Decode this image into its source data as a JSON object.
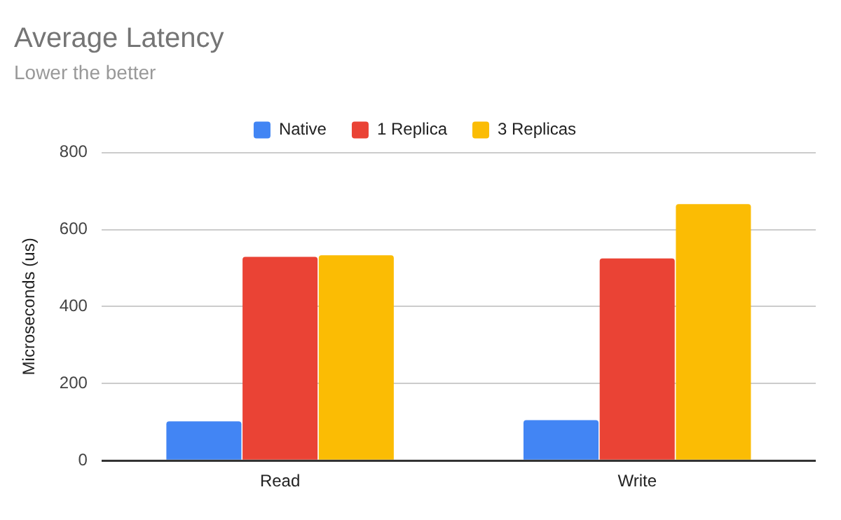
{
  "chart_data": {
    "type": "bar",
    "title": "Average Latency",
    "subtitle": "Lower the better",
    "ylabel": "Microseconds (us)",
    "categories": [
      "Read",
      "Write"
    ],
    "series": [
      {
        "name": "Native",
        "color": "#4285f4",
        "values": [
          102,
          105
        ]
      },
      {
        "name": "1 Replica",
        "color": "#ea4335",
        "values": [
          529,
          525
        ]
      },
      {
        "name": "3 Replicas",
        "color": "#fbbc04",
        "values": [
          533,
          666
        ]
      }
    ],
    "ylim": [
      0,
      800
    ],
    "yticks": [
      0,
      200,
      400,
      600,
      800
    ],
    "grid": "y",
    "legend": "top"
  }
}
